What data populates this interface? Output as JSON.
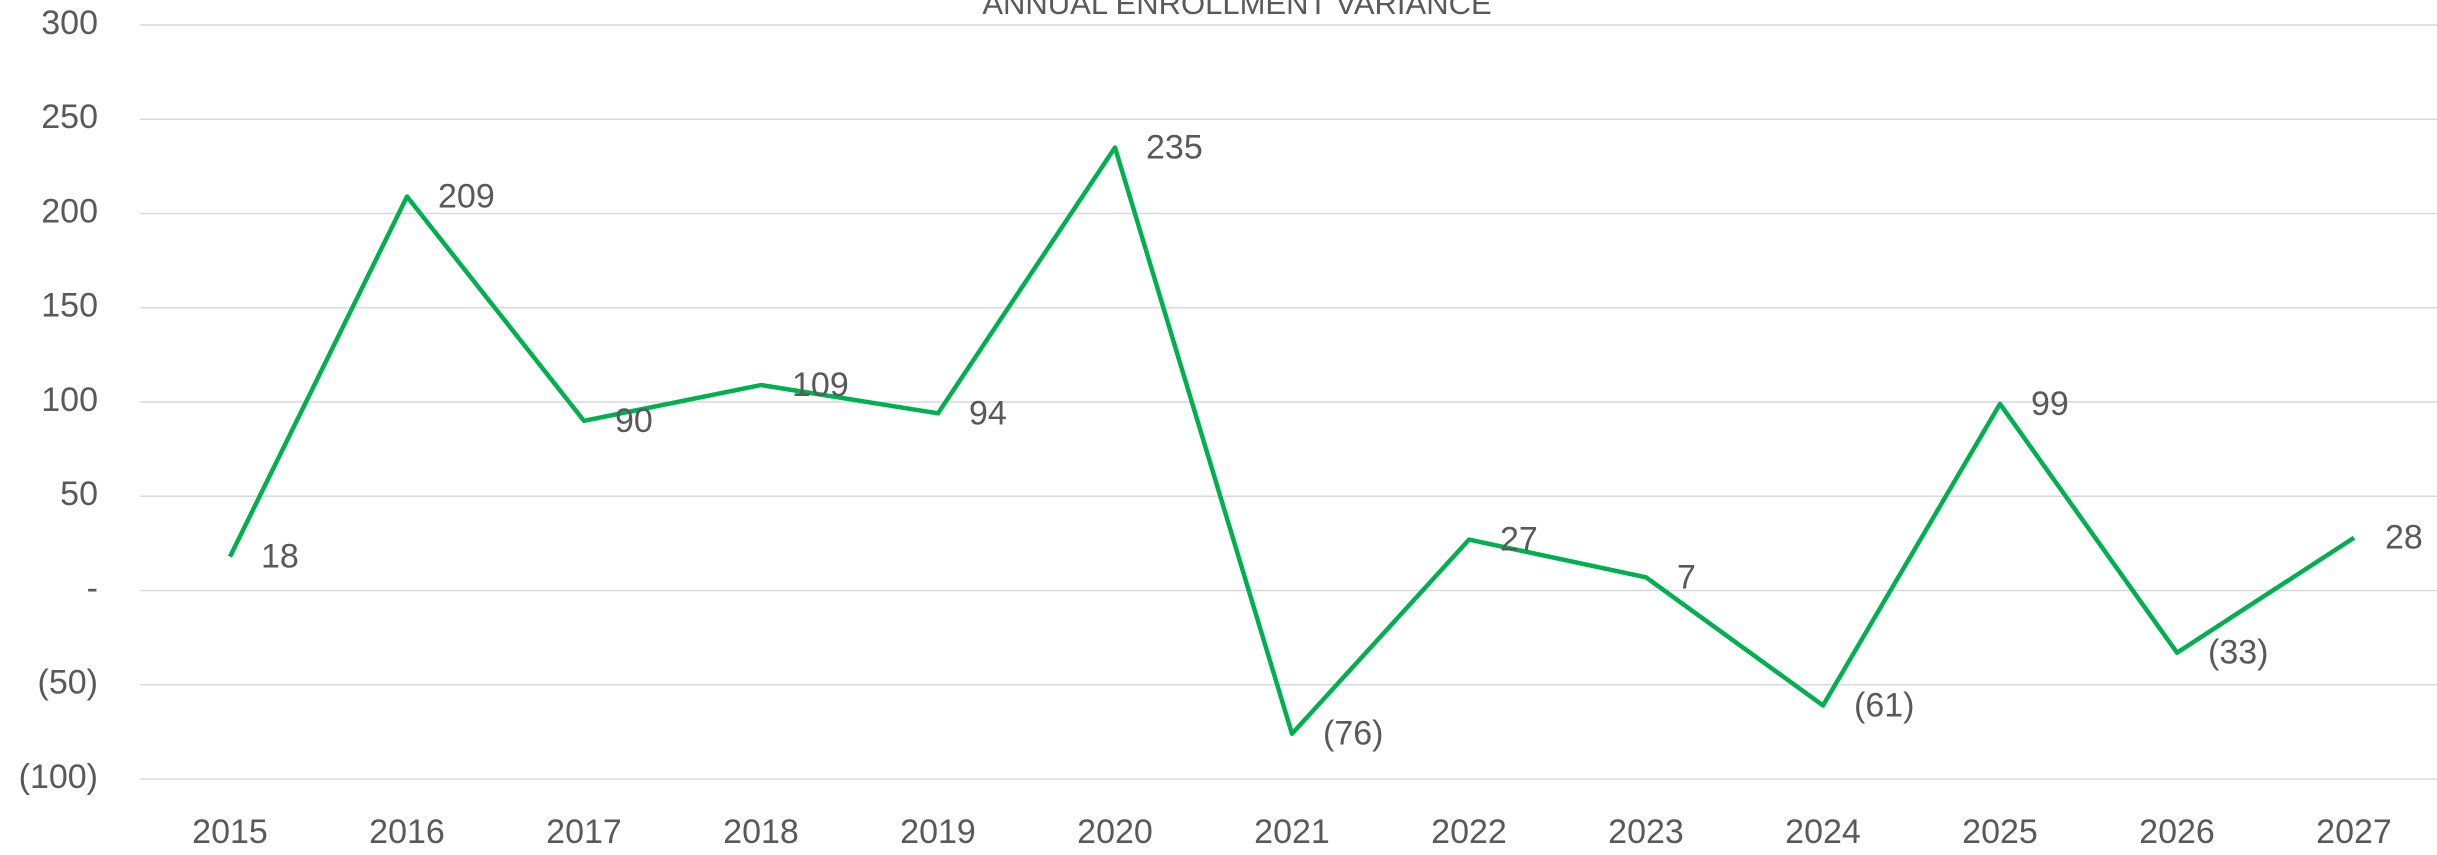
{
  "chart_data": {
    "type": "line",
    "title": "ANNUAL ENROLLMENT VARIANCE",
    "categories": [
      "2015",
      "2016",
      "2017",
      "2018",
      "2019",
      "2020",
      "2021",
      "2022",
      "2023",
      "2024",
      "2025",
      "2026",
      "2027"
    ],
    "series": [
      {
        "name": "Enrollment Variance",
        "color": "#00b050",
        "values": [
          18,
          209,
          90,
          109,
          94,
          235,
          -76,
          27,
          7,
          -61,
          99,
          -33,
          28
        ],
        "value_labels": [
          "18",
          "209",
          "90",
          "109",
          "94",
          "235",
          "(76)",
          "27",
          "7",
          "(61)",
          "99",
          "(33)",
          "28"
        ]
      }
    ],
    "ylim": [
      -100,
      300
    ],
    "yticks": [
      {
        "value": -100,
        "label": "(100)"
      },
      {
        "value": -50,
        "label": "(50)"
      },
      {
        "value": 0,
        "label": "-"
      },
      50,
      100,
      150,
      200,
      250,
      300
    ],
    "grid": true
  }
}
